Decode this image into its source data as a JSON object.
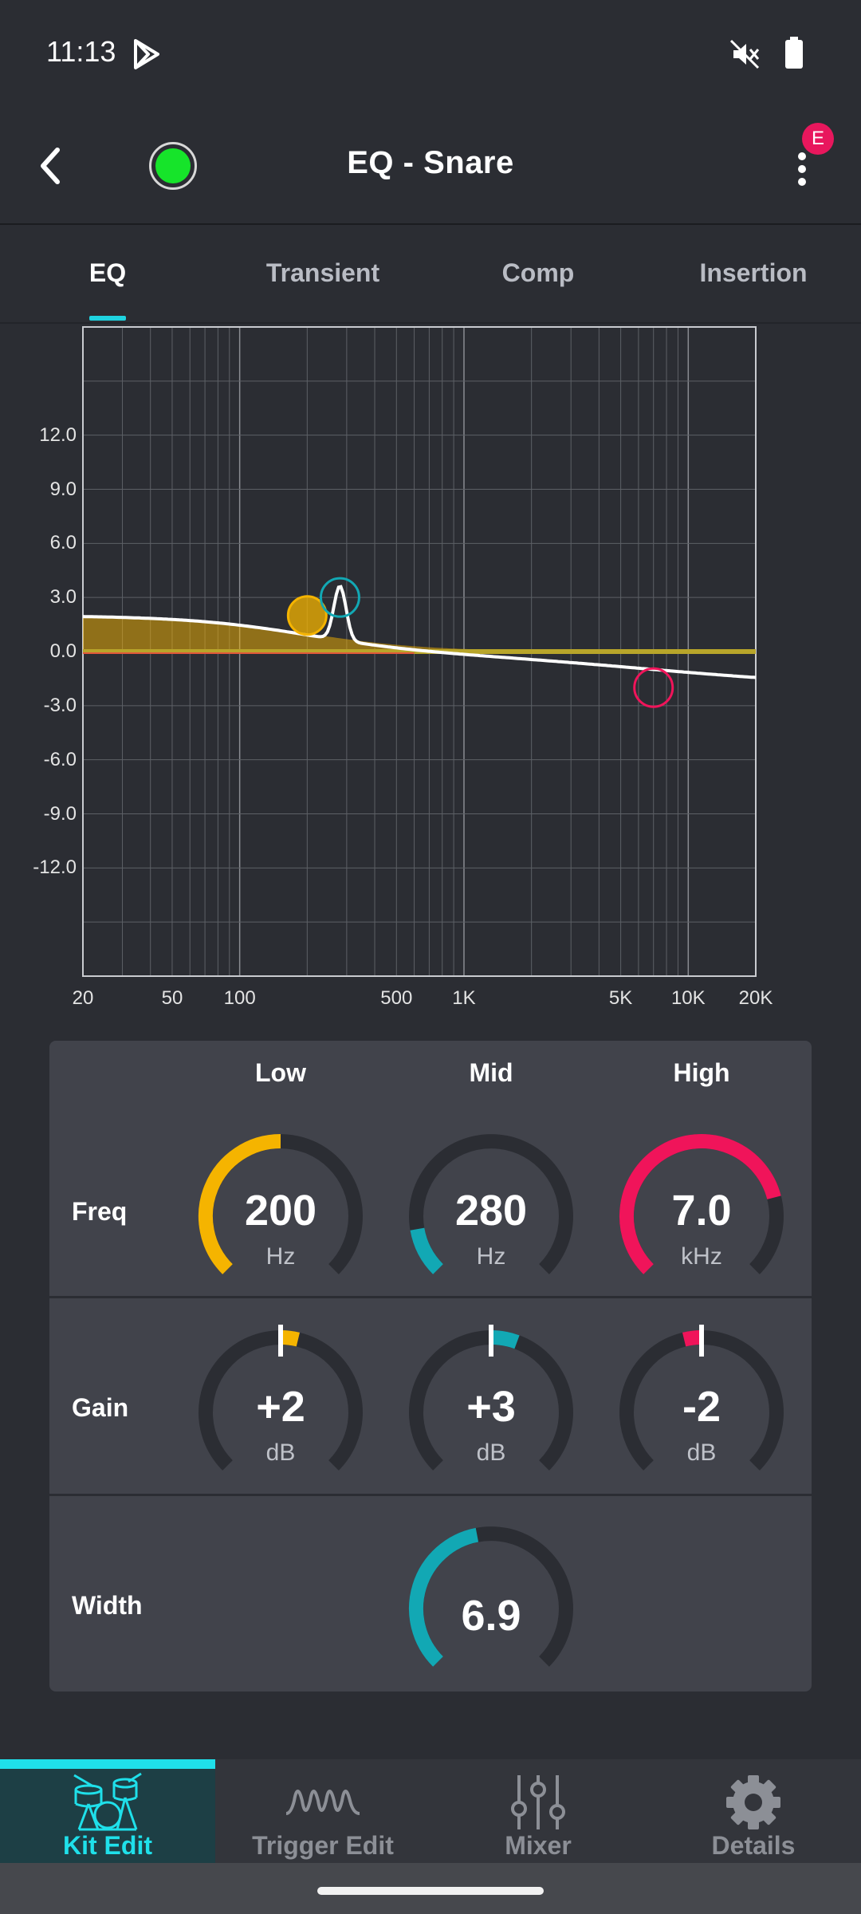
{
  "status_bar": {
    "time": "11:13",
    "icons": [
      "play-store-icon",
      "mute-icon",
      "battery-icon"
    ]
  },
  "header": {
    "title": "EQ  - Snare",
    "badge": "E",
    "led_color": "#16e42a"
  },
  "tabs": [
    {
      "label": "EQ",
      "active": true
    },
    {
      "label": "Transient",
      "active": false
    },
    {
      "label": "Comp",
      "active": false
    },
    {
      "label": "Insertion",
      "active": false
    }
  ],
  "graph": {
    "y_ticks": [
      "12.0",
      "9.0",
      "6.0",
      "3.0",
      "0.0",
      "-3.0",
      "-6.0",
      "-9.0",
      "-12.0"
    ],
    "x_ticks": [
      "20",
      "50",
      "100",
      "500",
      "1K",
      "5K",
      "10K",
      "20K"
    ],
    "x_tick_values": [
      20,
      50,
      100,
      500,
      1000,
      5000,
      10000,
      20000
    ],
    "x_range_hz": [
      20,
      20000
    ],
    "y_range_db": [
      -18,
      18
    ],
    "bands": [
      {
        "name": "Low",
        "freq_hz": 200,
        "gain_db": 2,
        "color": "#f5b400"
      },
      {
        "name": "Mid",
        "freq_hz": 280,
        "gain_db": 3,
        "color": "#12a8b4"
      },
      {
        "name": "High",
        "freq_hz": 7000,
        "gain_db": -2,
        "color": "#f0145a"
      }
    ]
  },
  "panel": {
    "columns": [
      "Low",
      "Mid",
      "High"
    ],
    "rows": {
      "freq": {
        "label": "Freq",
        "knobs": [
          {
            "value": "200",
            "unit": "Hz",
            "color": "#f5b400",
            "level": 0.5
          },
          {
            "value": "280",
            "unit": "Hz",
            "color": "#12a8b4",
            "level": 0.13
          },
          {
            "value": "7.0",
            "unit": "kHz",
            "color": "#f0145a",
            "level": 0.78
          }
        ]
      },
      "gain": {
        "label": "Gain",
        "knobs": [
          {
            "value": "+2",
            "unit": "dB",
            "color": "#f5b400",
            "level": 0.1
          },
          {
            "value": "+3",
            "unit": "dB",
            "color": "#12a8b4",
            "level": 0.15
          },
          {
            "value": "-2",
            "unit": "dB",
            "color": "#f0145a",
            "level": -0.1
          }
        ]
      },
      "width": {
        "label": "Width",
        "knob": {
          "value": "6.9",
          "color": "#12a8b4",
          "level": 0.46
        }
      }
    }
  },
  "bottom_nav": [
    {
      "label": "Kit Edit",
      "icon": "drum-kit-icon",
      "active": true
    },
    {
      "label": "Trigger Edit",
      "icon": "waveform-icon",
      "active": false
    },
    {
      "label": "Mixer",
      "icon": "mixer-sliders-icon",
      "active": false
    },
    {
      "label": "Details",
      "icon": "gear-icon",
      "active": false
    }
  ]
}
